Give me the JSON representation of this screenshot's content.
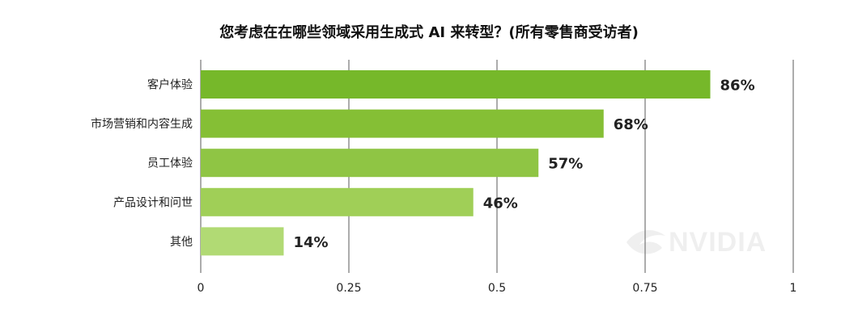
{
  "chart_data": {
    "type": "bar",
    "orientation": "horizontal",
    "title": "您考虑在在哪些领域采用生成式 AI 来转型？(所有零售商受访者)",
    "categories": [
      "客户体验",
      "市场营销和内容生成",
      "员工体验",
      "产品设计和问世",
      "其他"
    ],
    "values": [
      0.86,
      0.68,
      0.57,
      0.46,
      0.14
    ],
    "value_labels": [
      "86%",
      "68%",
      "57%",
      "46%",
      "14%"
    ],
    "bar_colors": [
      "#76b82a",
      "#85bf35",
      "#8fc544",
      "#a0cf57",
      "#b1da74"
    ],
    "xlim": [
      0,
      1
    ],
    "x_ticks": [
      0,
      0.25,
      0.5,
      0.75,
      1
    ],
    "x_tick_labels": [
      "0",
      "0.25",
      "0.5",
      "0.75",
      "1"
    ],
    "grid": "vertical",
    "grid_color": "#5a5a5a",
    "xlabel": "",
    "ylabel": ""
  },
  "watermark": {
    "logo_text": "NVIDIA"
  }
}
